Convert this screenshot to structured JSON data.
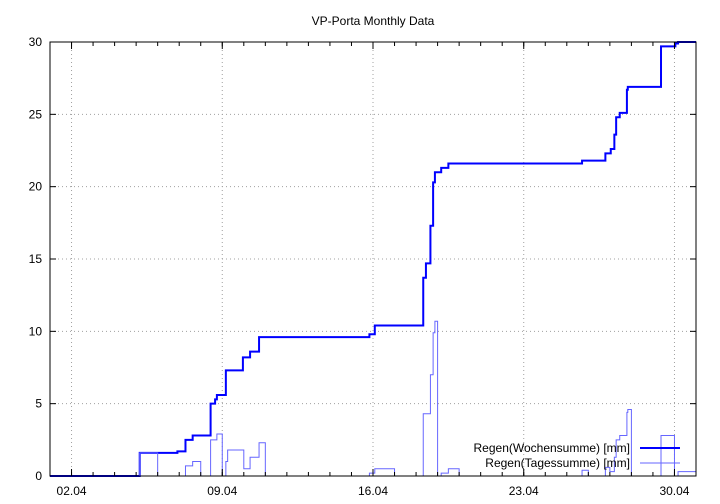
{
  "chart_data": {
    "type": "line",
    "title": "VP-Porta Monthly Data",
    "xlabel": "",
    "ylabel": "",
    "xlim": [
      "01.04 00:00",
      "01.05 00:00"
    ],
    "ylim": [
      0,
      30
    ],
    "x_ticks": [
      "02.04",
      "09.04",
      "16.04",
      "23.04",
      "30.04"
    ],
    "y_ticks": [
      0,
      5,
      10,
      15,
      20,
      25,
      30
    ],
    "grid": true,
    "legend_position": "bottom-right",
    "step": true,
    "series": [
      {
        "name": "Regen(Wochensumme) [mm]",
        "color": "#0000ff",
        "points": [
          [
            "01.04 00:00",
            0
          ],
          [
            "05.04 04:00",
            1.6
          ],
          [
            "06.04 22:00",
            1.7
          ],
          [
            "07.04 07:00",
            2.5
          ],
          [
            "07.04 15:00",
            2.8
          ],
          [
            "08.04 11:00",
            5.0
          ],
          [
            "08.04 16:00",
            5.3
          ],
          [
            "08.04 18:00",
            5.6
          ],
          [
            "09.04 04:00",
            7.3
          ],
          [
            "09.04 23:00",
            8.2
          ],
          [
            "10.04 07:00",
            8.6
          ],
          [
            "10.04 17:00",
            9.6
          ],
          [
            "15.04 20:00",
            9.8
          ],
          [
            "16.04 02:00",
            10.4
          ],
          [
            "18.04 08:00",
            13.7
          ],
          [
            "18.04 11:00",
            14.7
          ],
          [
            "18.04 16:00",
            17.3
          ],
          [
            "18.04 19:00",
            20.3
          ],
          [
            "18.04 21:00",
            21.0
          ],
          [
            "19.04 04:00",
            21.3
          ],
          [
            "19.04 12:00",
            21.6
          ],
          [
            "25.04 17:00",
            21.8
          ],
          [
            "26.04 19:00",
            22.3
          ],
          [
            "27.04 01:00",
            22.6
          ],
          [
            "27.04 05:00",
            23.6
          ],
          [
            "27.04 07:00",
            24.8
          ],
          [
            "27.04 11:00",
            25.1
          ],
          [
            "27.04 19:00",
            26.7
          ],
          [
            "27.04 20:00",
            26.9
          ],
          [
            "29.04 09:00",
            29.7
          ],
          [
            "30.04 01:00",
            29.9
          ],
          [
            "30.04 04:00",
            30.0
          ],
          [
            "01.05 00:00",
            30.0
          ]
        ]
      },
      {
        "name": "Regen(Tagessumme) [mm]",
        "color": "#6666ff",
        "points": [
          [
            "01.04 00:00",
            0
          ],
          [
            "05.04 04:00",
            1.6
          ],
          [
            "06.04 00:00",
            0
          ],
          [
            "07.04 07:00",
            0.7
          ],
          [
            "07.04 15:00",
            1.0
          ],
          [
            "08.04 00:00",
            0
          ],
          [
            "08.04 11:00",
            2.5
          ],
          [
            "08.04 18:00",
            2.9
          ],
          [
            "09.04 00:00",
            0
          ],
          [
            "09.04 04:00",
            1.0
          ],
          [
            "09.04 06:00",
            1.8
          ],
          [
            "10.04 00:00",
            0.5
          ],
          [
            "10.04 07:00",
            1.3
          ],
          [
            "10.04 17:00",
            2.3
          ],
          [
            "11.04 00:00",
            0
          ],
          [
            "15.04 20:00",
            0.2
          ],
          [
            "16.04 02:00",
            0.5
          ],
          [
            "17.04 00:00",
            0
          ],
          [
            "18.04 08:00",
            4.3
          ],
          [
            "18.04 16:00",
            7.0
          ],
          [
            "18.04 19:00",
            9.9
          ],
          [
            "18.04 21:00",
            10.7
          ],
          [
            "19.04 00:00",
            0
          ],
          [
            "19.04 04:00",
            0.2
          ],
          [
            "19.04 12:00",
            0.5
          ],
          [
            "20.04 00:00",
            0
          ],
          [
            "25.04 17:00",
            0.4
          ],
          [
            "26.04 00:00",
            0
          ],
          [
            "26.04 19:00",
            0.6
          ],
          [
            "27.04 00:00",
            0.3
          ],
          [
            "27.04 05:00",
            1.3
          ],
          [
            "27.04 07:00",
            2.5
          ],
          [
            "27.04 11:00",
            2.8
          ],
          [
            "27.04 19:00",
            4.4
          ],
          [
            "27.04 20:00",
            4.6
          ],
          [
            "28.04 00:00",
            0
          ],
          [
            "29.04 09:00",
            2.8
          ],
          [
            "30.04 00:00",
            0
          ],
          [
            "30.04 04:00",
            0.3
          ],
          [
            "01.05 00:00",
            0.3
          ]
        ]
      }
    ]
  }
}
